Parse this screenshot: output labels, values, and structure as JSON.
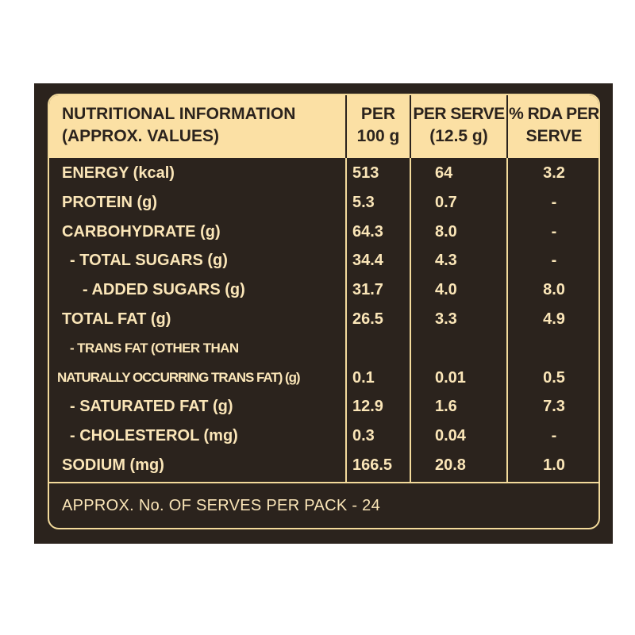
{
  "header": {
    "col1_line1": "NUTRITIONAL INFORMATION",
    "col1_line2": "(APPROX. VALUES)",
    "col2_line1": "PER",
    "col2_line2": "100 g",
    "col3_line1": "PER SERVE",
    "col3_line2": "(12.5 g)",
    "col4_line1": "% RDA PER",
    "col4_line2": "SERVE"
  },
  "rows": [
    {
      "label": "ENERGY (kcal)",
      "per100": "513",
      "perServe": "64",
      "rda": "3.2"
    },
    {
      "label": "PROTEIN (g)",
      "per100": "5.3",
      "perServe": "0.7",
      "rda": "-"
    },
    {
      "label": "CARBOHYDRATE (g)",
      "per100": "64.3",
      "perServe": "8.0",
      "rda": "-"
    },
    {
      "label": "- TOTAL SUGARS (g)",
      "per100": "34.4",
      "perServe": "4.3",
      "rda": "-"
    },
    {
      "label": "- ADDED SUGARS (g)",
      "per100": "31.7",
      "perServe": "4.0",
      "rda": "8.0"
    },
    {
      "label": "TOTAL FAT (g)",
      "per100": "26.5",
      "perServe": "3.3",
      "rda": "4.9"
    },
    {
      "label": "- TRANS FAT (OTHER THAN",
      "per100": "",
      "perServe": "",
      "rda": ""
    },
    {
      "label": "NATURALLY OCCURRING TRANS FAT) (g)",
      "per100": "0.1",
      "perServe": "0.01",
      "rda": "0.5"
    },
    {
      "label": "- SATURATED FAT (g)",
      "per100": "12.9",
      "perServe": "1.6",
      "rda": "7.3"
    },
    {
      "label": "- CHOLESTEROL (mg)",
      "per100": "0.3",
      "perServe": "0.04",
      "rda": "-"
    },
    {
      "label": "SODIUM (mg)",
      "per100": "166.5",
      "perServe": "20.8",
      "rda": "1.0"
    }
  ],
  "footer": "APPROX. No. OF SERVES PER PACK - 24",
  "colors": {
    "panel": "#2b231d",
    "accent": "#fbe0a4",
    "text": "#fbe6b8"
  }
}
